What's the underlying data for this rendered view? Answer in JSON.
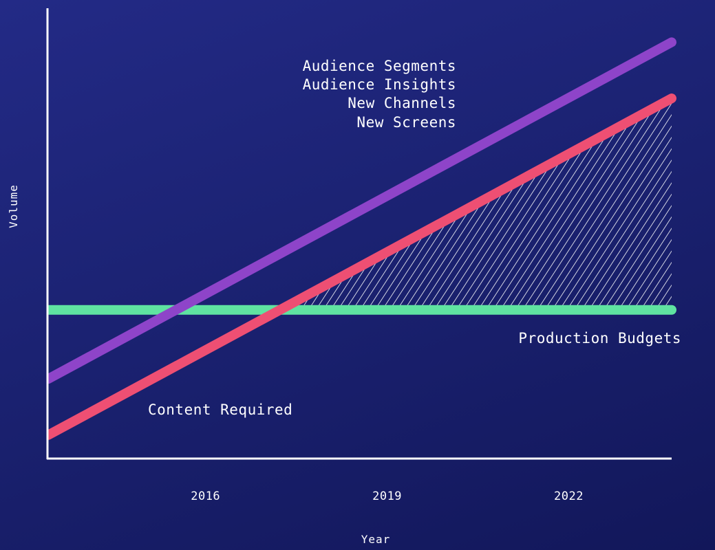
{
  "chart_data": {
    "type": "line",
    "title": "",
    "xlabel": "Year",
    "ylabel": "Volume",
    "x_ticks": [
      "2016",
      "2019",
      "2022"
    ],
    "xlim": [
      2013.4,
      2023.7
    ],
    "ylim": [
      0,
      100
    ],
    "grid": false,
    "colors": {
      "background": "#1b2272",
      "axis": "#ffffff",
      "audience": "#8e44c9",
      "content": "#ee4f73",
      "budget": "#5fe3a1",
      "hatch": "#ffffff"
    },
    "series": [
      {
        "key": "audience",
        "name": "Audience Segments / Audience Insights / New Channels / New Screens",
        "x": [
          2013.4,
          2023.7
        ],
        "y": [
          17,
          95
        ]
      },
      {
        "key": "content",
        "name": "Content Required",
        "x": [
          2013.4,
          2023.7
        ],
        "y": [
          4,
          82
        ]
      },
      {
        "key": "budget",
        "name": "Production Budgets",
        "x": [
          2013.4,
          2023.7
        ],
        "y": [
          33,
          33
        ]
      }
    ],
    "shaded_region": "area between Content Required and Production Budgets where content exceeds budget",
    "annotations": {
      "audience_lines": [
        "Audience Segments",
        "Audience Insights",
        "New Channels",
        "New Screens"
      ],
      "content": "Content Required",
      "budget": "Production Budgets"
    }
  }
}
